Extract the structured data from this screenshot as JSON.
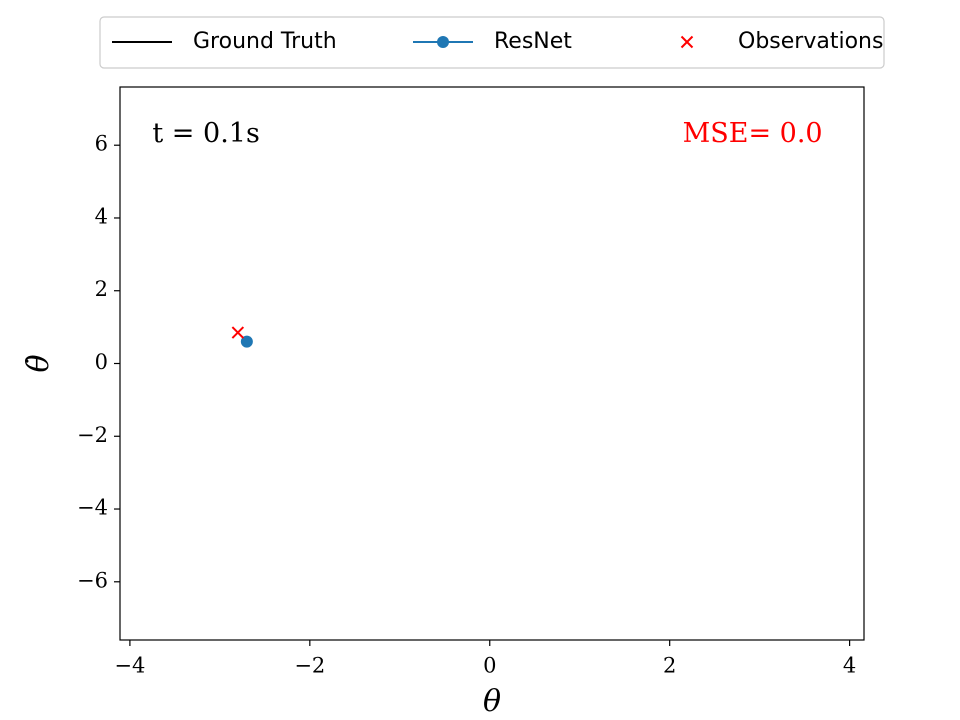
{
  "chart_data": {
    "type": "line",
    "xlabel": "θ",
    "ylabel": "θ̇",
    "annotations": [
      {
        "text": "t = 0.1s",
        "color": "#000000",
        "x": -3.75,
        "y": 6.3,
        "align": "left"
      },
      {
        "text": "MSE= 0.0",
        "color": "#ff0000",
        "x": 3.7,
        "y": 6.3,
        "align": "right"
      }
    ],
    "xlim": [
      -4.11,
      4.16
    ],
    "ylim": [
      -7.6,
      7.6
    ],
    "xticks": [
      {
        "value": -4,
        "label": "−4"
      },
      {
        "value": -2,
        "label": "−2"
      },
      0,
      2,
      4
    ],
    "yticks": [
      {
        "value": -6,
        "label": "−6"
      },
      {
        "value": -4,
        "label": "−4"
      },
      {
        "value": -2,
        "label": "−2"
      },
      0,
      2,
      4,
      6
    ],
    "legend": "top",
    "series": [
      {
        "name": "Ground Truth",
        "color": "#000000",
        "marker": "none",
        "linestyle": "solid",
        "x": [],
        "values": []
      },
      {
        "name": "ResNet",
        "color": "#1f77b4",
        "marker": "circle",
        "linestyle": "solid",
        "x": [
          -2.7
        ],
        "values": [
          0.6
        ]
      },
      {
        "name": "Observations",
        "color": "#ff0000",
        "marker": "cross",
        "linestyle": "none",
        "x": [
          -2.8
        ],
        "values": [
          0.85
        ]
      }
    ]
  }
}
